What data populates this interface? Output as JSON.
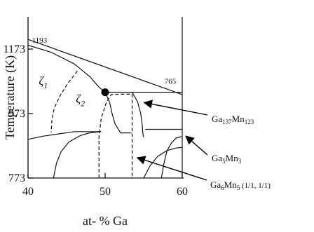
{
  "chart_data": {
    "type": "line",
    "title": "",
    "xlabel": "at- % Ga",
    "ylabel": "Temperature (K)",
    "xlim": [
      40,
      60
    ],
    "ylim": [
      773,
      1273
    ],
    "xticks": [
      40,
      50,
      60
    ],
    "yticks": [
      773,
      973,
      1173
    ],
    "grid": false,
    "annotations": [
      {
        "text": "1193",
        "x": 40.5,
        "y": 1193
      },
      {
        "text": "765",
        "x": 57.7,
        "y": 1065
      }
    ],
    "phase_labels": [
      {
        "base": "ζ",
        "sub": "1",
        "x": 41.4,
        "y": 1062
      },
      {
        "base": "ζ",
        "sub": "2",
        "x": 46.2,
        "y": 1007
      }
    ],
    "marker": {
      "x": 50,
      "y": 1039
    },
    "arrow_labels": [
      {
        "parts": [
          [
            "Ga",
            ""
          ],
          [
            "137",
            "sub"
          ],
          [
            "Mn",
            ""
          ],
          [
            "123",
            "sub"
          ]
        ],
        "target": {
          "x": 54.7,
          "y": 1007
        }
      },
      {
        "parts": [
          [
            "Ga",
            ""
          ],
          [
            "5",
            "sub"
          ],
          [
            "Mn",
            ""
          ],
          [
            "3",
            "sub"
          ]
        ],
        "target": {
          "x": 60.1,
          "y": 903
        }
      },
      {
        "parts": [
          [
            "Ga",
            ""
          ],
          [
            "6",
            "sub"
          ],
          [
            "Mn",
            ""
          ],
          [
            "5",
            "sub"
          ],
          [
            " (1/1, 1/1)",
            "small"
          ]
        ],
        "target": {
          "x": 53.8,
          "y": 836
        }
      }
    ],
    "series": [
      {
        "style": "solid",
        "points": [
          [
            40,
            1203
          ],
          [
            60,
            1032
          ]
        ]
      },
      {
        "style": "solid",
        "points": [
          [
            40,
            1185
          ],
          [
            43,
            1163
          ],
          [
            46,
            1127
          ],
          [
            48,
            1088
          ],
          [
            49.2,
            1055
          ],
          [
            50,
            1039
          ],
          [
            50.6,
            1006
          ],
          [
            50.9,
            973
          ],
          [
            51.3,
            940
          ],
          [
            52,
            913
          ],
          [
            53.4,
            913
          ]
        ]
      },
      {
        "style": "solid",
        "points": [
          [
            50,
            1039
          ],
          [
            55.5,
            1039
          ]
        ]
      },
      {
        "style": "solid",
        "points": [
          [
            55.5,
            1039
          ],
          [
            60,
            1039
          ]
        ]
      },
      {
        "style": "solid",
        "points": [
          [
            53.5,
            1039
          ],
          [
            54.2,
            1010
          ],
          [
            54.6,
            975
          ],
          [
            54.8,
            940
          ],
          [
            54.9,
            910
          ],
          [
            55,
            900
          ]
        ]
      },
      {
        "style": "solid",
        "points": [
          [
            55.2,
            924
          ],
          [
            60,
            924
          ]
        ]
      },
      {
        "style": "solid",
        "points": [
          [
            40,
            893
          ],
          [
            42,
            903
          ],
          [
            44,
            910
          ],
          [
            46,
            917
          ],
          [
            47.5,
            917
          ],
          [
            49.5,
            917
          ]
        ]
      },
      {
        "style": "solid",
        "points": [
          [
            43.3,
            773
          ],
          [
            43.7,
            820
          ],
          [
            44.3,
            855
          ],
          [
            45.3,
            885
          ],
          [
            46.8,
            905
          ],
          [
            48,
            913
          ],
          [
            49.5,
            917
          ]
        ]
      },
      {
        "style": "solid",
        "points": [
          [
            57.3,
            773
          ],
          [
            57.6,
            815
          ],
          [
            58,
            856
          ],
          [
            58.6,
            882
          ],
          [
            59.2,
            897
          ],
          [
            60,
            902
          ]
        ]
      },
      {
        "style": "solid",
        "points": [
          [
            55,
            773
          ],
          [
            55.8,
            810
          ],
          [
            56.8,
            840
          ],
          [
            58,
            858
          ],
          [
            59.2,
            866
          ],
          [
            60,
            868
          ]
        ]
      },
      {
        "style": "solid",
        "points": [
          [
            60,
            773
          ],
          [
            60,
            1273
          ]
        ]
      },
      {
        "style": "dashed",
        "points": [
          [
            46.4,
            1105
          ],
          [
            45.2,
            1068
          ],
          [
            44.2,
            1030
          ],
          [
            43.4,
            990
          ],
          [
            43.1,
            955
          ],
          [
            43,
            915
          ]
        ]
      },
      {
        "style": "dashed",
        "points": [
          [
            49.2,
            773
          ],
          [
            49.2,
            900
          ],
          [
            49.5,
            960
          ],
          [
            50.2,
            1010
          ],
          [
            50.8,
            1032
          ],
          [
            52,
            1033
          ],
          [
            53.5,
            1033
          ]
        ]
      },
      {
        "style": "dashed",
        "points": [
          [
            53.5,
            1033
          ],
          [
            53.5,
            773
          ]
        ]
      }
    ]
  }
}
